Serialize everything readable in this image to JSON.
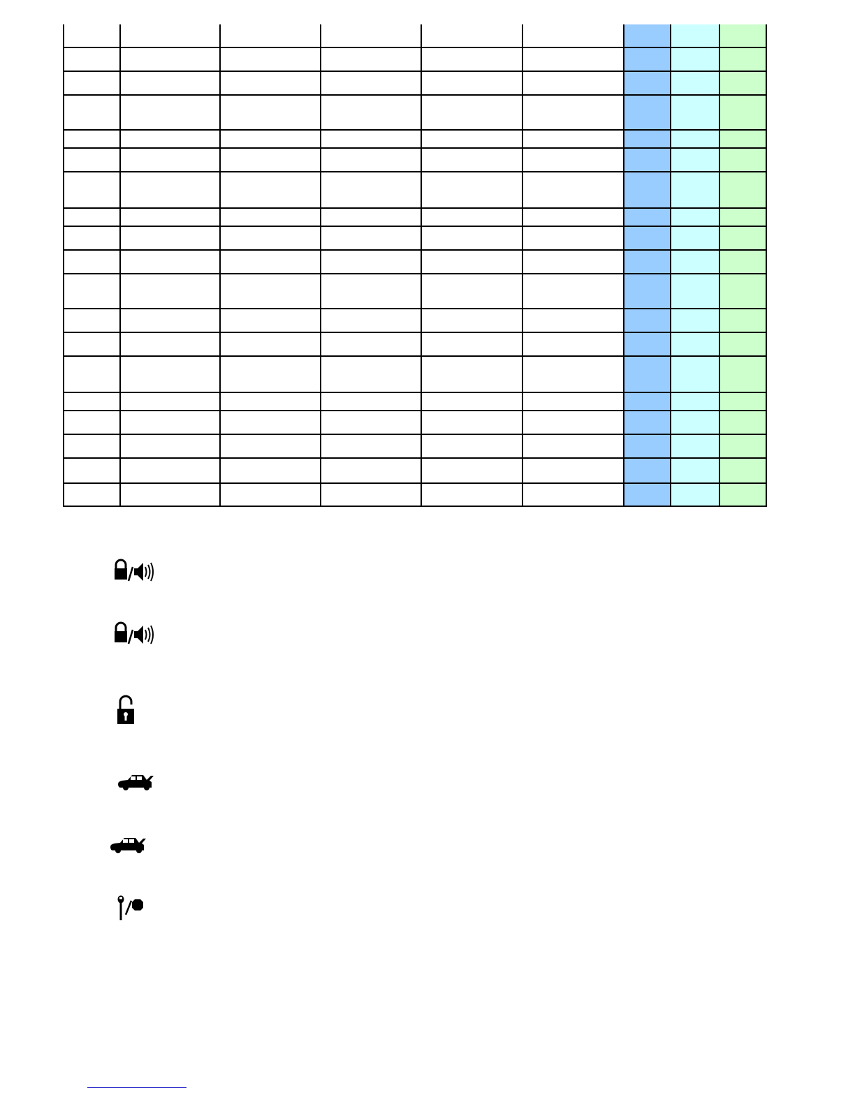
{
  "table": {
    "rows": 20,
    "columns": 9,
    "cells_text": "",
    "column_fills": [
      null,
      null,
      null,
      null,
      null,
      null,
      "#99ccff",
      "#ccffff",
      "#ccffcc"
    ]
  },
  "icons": [
    {
      "name": "lock-horn-icon"
    },
    {
      "name": "lock-horn-icon"
    },
    {
      "name": "unlock-icon"
    },
    {
      "name": "trunk-open-icon"
    },
    {
      "name": "trunk-open-icon"
    },
    {
      "name": "key-stop-icon"
    }
  ],
  "colors": {
    "footer_rule": "#3333cc",
    "lines": "#000000"
  }
}
